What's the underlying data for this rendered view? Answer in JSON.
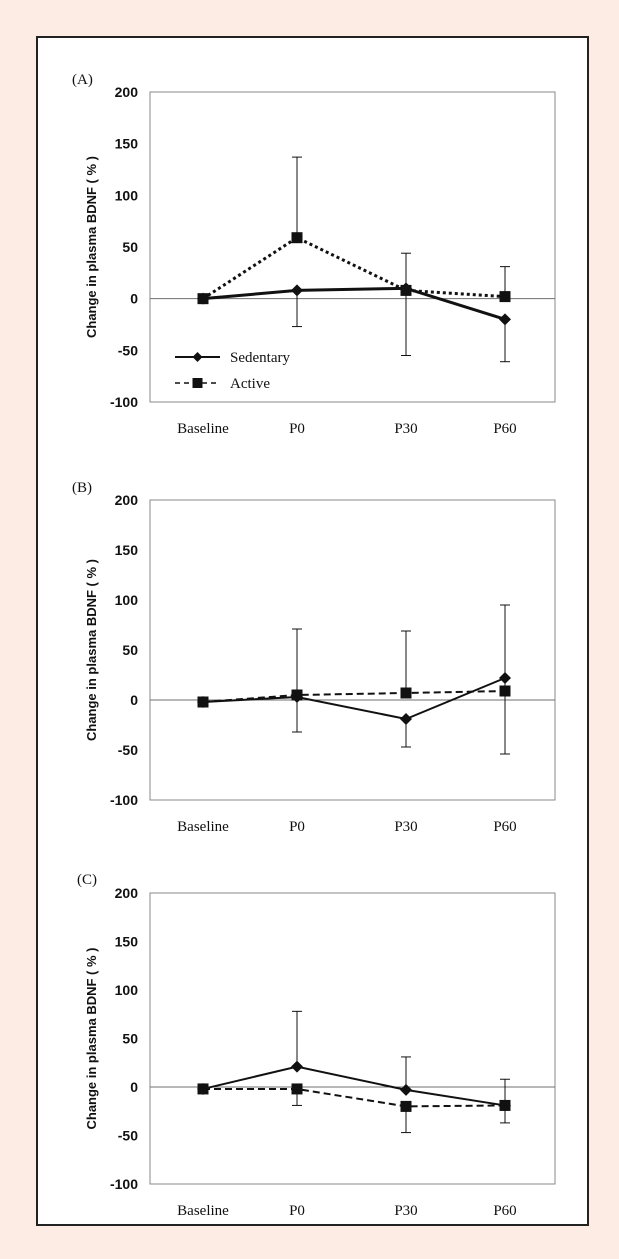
{
  "colors": {
    "background": "#fdece4",
    "frame": "#222222",
    "series": "#111111"
  },
  "chart_data": [
    {
      "type": "line",
      "panel_label": "(A)",
      "ylabel": "Change in plasma BDNF ( % )",
      "categories": [
        "Baseline",
        "P0",
        "P30",
        "P60"
      ],
      "ylim": [
        -100,
        200
      ],
      "yticks": [
        -100,
        -50,
        0,
        50,
        100,
        150,
        200
      ],
      "legend": {
        "placement": "bottom-left",
        "entries": [
          "Sedentary",
          "Active"
        ]
      },
      "series": [
        {
          "name": "Sedentary",
          "marker": "diamond",
          "line": "solid-thick",
          "values": [
            0,
            8,
            10,
            -20
          ],
          "err_low": [
            null,
            -27,
            -55,
            -61
          ],
          "err_high": [
            null,
            null,
            null,
            null
          ]
        },
        {
          "name": "Active",
          "marker": "square",
          "line": "dotted",
          "values": [
            0,
            59,
            8,
            2
          ],
          "err_low": [
            null,
            null,
            null,
            null
          ],
          "err_high": [
            null,
            137,
            44,
            31
          ]
        }
      ]
    },
    {
      "type": "line",
      "panel_label": "(B)",
      "ylabel": "Change in plasma BDNF ( % )",
      "categories": [
        "Baseline",
        "P0",
        "P30",
        "P60"
      ],
      "ylim": [
        -100,
        200
      ],
      "yticks": [
        -100,
        -50,
        0,
        50,
        100,
        150,
        200
      ],
      "series": [
        {
          "name": "Sedentary",
          "marker": "diamond",
          "line": "solid",
          "values": [
            -2,
            3,
            -19,
            22
          ],
          "err_low": [
            null,
            -32,
            -47,
            -54
          ],
          "err_high": [
            null,
            null,
            null,
            null
          ]
        },
        {
          "name": "Active",
          "marker": "square",
          "line": "dashed",
          "values": [
            -2,
            5,
            7,
            9
          ],
          "err_low": [
            null,
            null,
            null,
            null
          ],
          "err_high": [
            null,
            71,
            69,
            95
          ]
        }
      ]
    },
    {
      "type": "line",
      "panel_label": "(C)",
      "ylabel": "Change in plasma BDNF ( % )",
      "categories": [
        "Baseline",
        "P0",
        "P30",
        "P60"
      ],
      "ylim": [
        -100,
        200
      ],
      "yticks": [
        -100,
        -50,
        0,
        50,
        100,
        150,
        200
      ],
      "series": [
        {
          "name": "Sedentary",
          "marker": "diamond",
          "line": "solid",
          "values": [
            -2,
            21,
            -3,
            -19
          ],
          "err_low": [
            null,
            null,
            null,
            null
          ],
          "err_high": [
            null,
            78,
            31,
            8
          ]
        },
        {
          "name": "Active",
          "marker": "square",
          "line": "dashed",
          "values": [
            -2,
            -2,
            -20,
            -19
          ],
          "err_low": [
            null,
            -19,
            -47,
            -37
          ],
          "err_high": [
            null,
            null,
            null,
            null
          ]
        }
      ]
    }
  ]
}
